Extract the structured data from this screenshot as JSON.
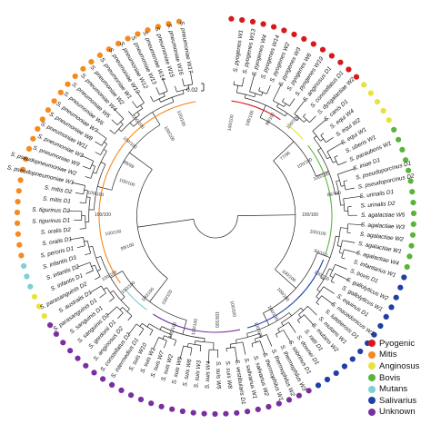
{
  "legend": [
    {
      "label": "Pyogenic",
      "color": "#d7191c"
    },
    {
      "label": "Mitis",
      "color": "#f58a1f"
    },
    {
      "label": "Anginosus",
      "color": "#e8e23b"
    },
    {
      "label": "Bovis",
      "color": "#5ab43c"
    },
    {
      "label": "Mutans",
      "color": "#7ecfd8"
    },
    {
      "label": "Salivarius",
      "color": "#1f3fa6"
    },
    {
      "label": "Unknown",
      "color": "#7a2fa1"
    }
  ],
  "scale_bar": {
    "label": "0.02"
  },
  "ring_segments": [
    {
      "group": "Pyogenic",
      "count": 14
    },
    {
      "group": "Anginosus",
      "count": 5
    },
    {
      "group": "Bovis",
      "count": 14
    },
    {
      "group": "Salivarius",
      "count": 14
    },
    {
      "group": "Unknown",
      "count": 28
    },
    {
      "group": "Anginosus",
      "count": 3
    },
    {
      "group": "Mutans",
      "count": 3
    },
    {
      "group": "Mitis",
      "count": 30
    }
  ],
  "leaves": [
    "S. pyogenes W1",
    "S. pyogenes W13",
    "S. pyogenes W4",
    "S. pyogenes W14",
    "S. pyogenes W2",
    "S. pyogenes W3",
    "S. pyogenes W6",
    "S. pyogenes W19",
    "S. anginosus D1",
    "S. constellatus D1",
    "S. dysgalactiae W2",
    "S. canis D1",
    "S. equi W4",
    "S. equi W2",
    "S. equi W1",
    "S. uberis W1",
    "S. parauberis W1",
    "S. iniae D1",
    "S. pseudoporcinus D1",
    "S. pseudoporcinus D2",
    "S. urinalis D1",
    "S. urinalis D2",
    "S. agalactiae W5",
    "S. agalactiae W3",
    "S. agalactiae W2",
    "S. agalactiae W1",
    "S. agalactiae W4",
    "S. infantarius W1",
    "S. bovis D1",
    "S. gallolyticus W2",
    "S. gallolyticus W1",
    "S. equinus D1",
    "S. macedonicus W1",
    "S. lutetiensis D1",
    "S. mutans W1",
    "S. mutans W2",
    "S. ratti D1",
    "S. downei D1",
    "S. sobrinus D1",
    "S. thermophilus W3",
    "S. thermophilus W2",
    "S. thermophilus W1",
    "S. salivarius W2",
    "S. salivarius W1",
    "S. vestibularis D1",
    "S. suis W8",
    "S. suis W5",
    "S. suis W4",
    "S. suis W3",
    "S. suis W6",
    "S. suis W9",
    "S. suis W2",
    "S. suis W7",
    "S. suis W1",
    "S. suis W10",
    "S. intermedius D1",
    "S. constellatus D2",
    "S. anginosus D2",
    "S. gordonii D1",
    "S. sanguinis D2",
    "S. sanguinis D1",
    "S. parasanguinis D1",
    "S. australis D1",
    "S. parasanguinis D2",
    "S. infantis D1",
    "S. infantis D2",
    "S. infantis D3",
    "S. peroris D1",
    "S. oralis D1",
    "S. oralis D2",
    "S. tigurinus D1",
    "S. tigurinus D2",
    "S. mitis D1",
    "S. mitis D2",
    "S. pseudopneumoniae W1",
    "S. pseudopneumoniae W2",
    "S. pneumoniae W9",
    "S. pneumoniae W3",
    "S. pneumoniae W11",
    "S. pneumoniae W8",
    "S. pneumoniae W7",
    "S. pneumoniae W6",
    "S. pneumoniae W5",
    "S. pneumoniae W4",
    "S. pneumoniae W2",
    "S. pneumoniae W1",
    "S. pneumoniae W10",
    "S. pneumoniae W12",
    "S. pneumoniae W13",
    "S. pneumoniae W14",
    "S. pneumoniae W15",
    "S. pneumoniae W16",
    "S. pneumoniae W17"
  ],
  "support_values": [
    "100/100",
    "100/100",
    "99/100",
    "100/100",
    "77/96",
    "100/100",
    "100/100",
    "86/100",
    "100/100",
    "100/100",
    "84/100",
    "100/100",
    "100/100",
    "100/100",
    "100/100",
    "100/100",
    "100/100",
    "100/100",
    "100/100",
    "100/100",
    "100/100",
    "100/100",
    "100/100",
    "100/100",
    "99/100",
    "100/100",
    "100/100",
    "100/100",
    "100/100",
    "99/99",
    "100/100",
    "100/100",
    "100/100",
    "100/100"
  ]
}
